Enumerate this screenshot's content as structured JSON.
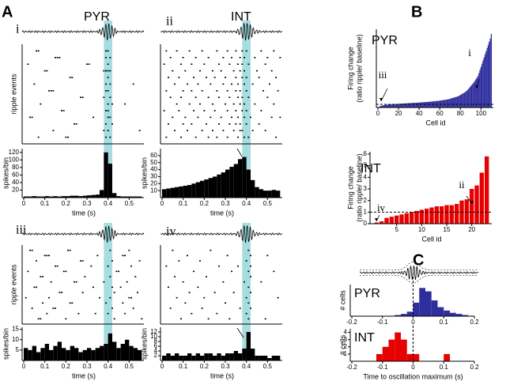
{
  "chart_data": [
    {
      "type": "histogram",
      "panel": "A",
      "label": "i",
      "title": "PYR",
      "xlabel": "time (s)",
      "ylabel": "spikes/bin",
      "raster_ylabel": "ripple events",
      "highlight": [
        0.38,
        0.42
      ],
      "color": "#000000",
      "highlight_color": "#a6dde1",
      "xlim": [
        0,
        0.57
      ],
      "xticks": [
        0,
        0.1,
        0.2,
        0.3,
        0.4,
        0.5
      ],
      "ylim": [
        0,
        130
      ],
      "yticks": [
        20,
        40,
        60,
        80,
        100,
        120
      ],
      "bins": [
        0,
        0.02,
        0.04,
        0.06,
        0.08,
        0.1,
        0.12,
        0.14,
        0.16,
        0.18,
        0.2,
        0.22,
        0.24,
        0.26,
        0.28,
        0.3,
        0.32,
        0.34,
        0.36,
        0.38,
        0.4,
        0.42,
        0.44,
        0.46,
        0.48,
        0.5,
        0.52,
        0.54,
        0.56
      ],
      "values": [
        3,
        3,
        4,
        3,
        3,
        4,
        3,
        4,
        3,
        4,
        4,
        5,
        5,
        4,
        5,
        6,
        7,
        8,
        20,
        120,
        90,
        12,
        4,
        3,
        3,
        3,
        3,
        3
      ],
      "raster": [
        [
          0.06,
          0.07,
          0.39,
          0.4
        ],
        [
          0.15,
          0.16,
          0.17,
          0.39,
          0.41
        ],
        [
          0.02,
          0.3,
          0.31,
          0.4
        ],
        [
          0.1,
          0.11,
          0.38,
          0.39,
          0.4,
          0.41
        ],
        [
          0.22,
          0.23,
          0.4
        ],
        [
          0.05,
          0.39,
          0.41,
          0.52
        ],
        [
          0.12,
          0.13,
          0.14,
          0.39,
          0.4
        ],
        [
          0.27,
          0.28,
          0.38,
          0.41
        ],
        [
          0.08,
          0.4,
          0.42,
          0.48
        ],
        [
          0.18,
          0.19,
          0.39,
          0.4
        ],
        [
          0.03,
          0.04,
          0.33,
          0.4,
          0.41
        ],
        [
          0.24,
          0.25,
          0.39,
          0.42
        ],
        [
          0.14,
          0.38,
          0.4,
          0.55
        ],
        [
          0.07,
          0.2,
          0.21,
          0.39,
          0.41
        ]
      ]
    },
    {
      "type": "histogram",
      "label": "ii",
      "title": "INT",
      "xlabel": "time (s)",
      "ylabel": "spikes/bin",
      "highlight": [
        0.38,
        0.42
      ],
      "color": "#000000",
      "highlight_color": "#a6dde1",
      "xlim": [
        0,
        0.57
      ],
      "xticks": [
        0,
        0.1,
        0.2,
        0.3,
        0.4,
        0.5
      ],
      "ylim": [
        0,
        70
      ],
      "yticks": [
        10,
        20,
        30,
        40,
        50,
        60
      ],
      "bins": [
        0,
        0.02,
        0.04,
        0.06,
        0.08,
        0.1,
        0.12,
        0.14,
        0.16,
        0.18,
        0.2,
        0.22,
        0.24,
        0.26,
        0.28,
        0.3,
        0.32,
        0.34,
        0.36,
        0.38,
        0.4,
        0.42,
        0.44,
        0.46,
        0.48,
        0.5,
        0.52,
        0.54,
        0.56
      ],
      "values": [
        12,
        13,
        14,
        15,
        16,
        17,
        18,
        20,
        22,
        24,
        26,
        28,
        30,
        33,
        36,
        40,
        44,
        48,
        55,
        58,
        40,
        25,
        15,
        12,
        10,
        10,
        11,
        10
      ],
      "raster": [
        [
          0.02,
          0.07,
          0.13,
          0.19,
          0.26,
          0.31,
          0.35,
          0.38,
          0.4,
          0.47,
          0.53
        ],
        [
          0.04,
          0.1,
          0.16,
          0.22,
          0.29,
          0.33,
          0.37,
          0.39,
          0.44,
          0.5,
          0.56
        ],
        [
          0.01,
          0.09,
          0.14,
          0.2,
          0.27,
          0.32,
          0.36,
          0.38,
          0.41,
          0.49
        ],
        [
          0.05,
          0.11,
          0.18,
          0.24,
          0.28,
          0.34,
          0.37,
          0.39,
          0.45,
          0.52
        ],
        [
          0.03,
          0.08,
          0.15,
          0.21,
          0.25,
          0.3,
          0.35,
          0.38,
          0.4,
          0.46,
          0.54
        ],
        [
          0.06,
          0.12,
          0.17,
          0.23,
          0.29,
          0.33,
          0.36,
          0.39,
          0.43,
          0.51
        ],
        [
          0.02,
          0.1,
          0.14,
          0.19,
          0.26,
          0.31,
          0.35,
          0.37,
          0.4,
          0.48,
          0.55
        ],
        [
          0.04,
          0.09,
          0.16,
          0.22,
          0.27,
          0.32,
          0.36,
          0.38,
          0.41,
          0.5
        ],
        [
          0.07,
          0.13,
          0.18,
          0.24,
          0.3,
          0.34,
          0.37,
          0.39,
          0.44,
          0.53
        ],
        [
          0.01,
          0.08,
          0.15,
          0.2,
          0.25,
          0.31,
          0.35,
          0.38,
          0.4,
          0.47
        ],
        [
          0.05,
          0.11,
          0.17,
          0.23,
          0.28,
          0.33,
          0.36,
          0.39,
          0.42,
          0.52,
          0.56
        ],
        [
          0.03,
          0.1,
          0.14,
          0.21,
          0.27,
          0.32,
          0.35,
          0.37,
          0.4,
          0.46
        ],
        [
          0.06,
          0.12,
          0.19,
          0.24,
          0.29,
          0.34,
          0.37,
          0.38,
          0.43,
          0.49
        ],
        [
          0.02,
          0.09,
          0.16,
          0.22,
          0.26,
          0.31,
          0.36,
          0.39,
          0.41,
          0.54
        ]
      ]
    },
    {
      "type": "histogram",
      "label": "iii",
      "xlabel": "time (s)",
      "ylabel": "spikes/bin",
      "raster_ylabel": "ripple events",
      "highlight": [
        0.38,
        0.42
      ],
      "color": "#000000",
      "highlight_color": "#a6dde1",
      "xlim": [
        0,
        0.57
      ],
      "xticks": [
        0,
        0.1,
        0.2,
        0.3,
        0.4,
        0.5
      ],
      "ylim": [
        0,
        16
      ],
      "yticks": [
        5,
        10,
        15
      ],
      "bins": [
        0,
        0.02,
        0.04,
        0.06,
        0.08,
        0.1,
        0.12,
        0.14,
        0.16,
        0.18,
        0.2,
        0.22,
        0.24,
        0.26,
        0.28,
        0.3,
        0.32,
        0.34,
        0.36,
        0.38,
        0.4,
        0.42,
        0.44,
        0.46,
        0.48,
        0.5,
        0.52,
        0.54,
        0.56
      ],
      "values": [
        6,
        5,
        7,
        4,
        6,
        8,
        5,
        7,
        9,
        6,
        5,
        7,
        6,
        4,
        5,
        6,
        5,
        6,
        7,
        8,
        13,
        9,
        6,
        8,
        10,
        7,
        6,
        5
      ],
      "raster": [
        [
          0.03,
          0.04,
          0.21,
          0.22,
          0.41,
          0.5
        ],
        [
          0.1,
          0.11,
          0.12,
          0.35,
          0.47,
          0.48
        ],
        [
          0.06,
          0.27,
          0.28,
          0.42,
          0.55
        ],
        [
          0.15,
          0.16,
          0.32,
          0.4,
          0.51
        ],
        [
          0.02,
          0.19,
          0.2,
          0.44,
          0.45
        ],
        [
          0.08,
          0.09,
          0.29,
          0.41,
          0.53
        ],
        [
          0.13,
          0.24,
          0.25,
          0.38,
          0.49
        ],
        [
          0.05,
          0.06,
          0.33,
          0.42,
          0.46
        ],
        [
          0.17,
          0.18,
          0.28,
          0.43,
          0.54
        ],
        [
          0.01,
          0.12,
          0.36,
          0.41,
          0.5,
          0.51
        ],
        [
          0.09,
          0.22,
          0.23,
          0.39,
          0.47
        ],
        [
          0.04,
          0.14,
          0.15,
          0.42,
          0.52
        ],
        [
          0.11,
          0.26,
          0.34,
          0.4,
          0.48
        ],
        [
          0.07,
          0.08,
          0.2,
          0.43,
          0.56
        ]
      ]
    },
    {
      "type": "histogram",
      "label": "iv",
      "xlabel": "time (s)",
      "ylabel": "spikes/bin",
      "highlight": [
        0.38,
        0.42
      ],
      "color": "#000000",
      "highlight_color": "#a6dde1",
      "xlim": [
        0,
        0.57
      ],
      "xticks": [
        0,
        0.1,
        0.2,
        0.3,
        0.4,
        0.5
      ],
      "ylim": [
        0,
        14
      ],
      "yticks": [
        2,
        4,
        6,
        8,
        10,
        12
      ],
      "bins": [
        0,
        0.02,
        0.04,
        0.06,
        0.08,
        0.1,
        0.12,
        0.14,
        0.16,
        0.18,
        0.2,
        0.22,
        0.24,
        0.26,
        0.28,
        0.3,
        0.32,
        0.34,
        0.36,
        0.38,
        0.4,
        0.42,
        0.44,
        0.46,
        0.48,
        0.5,
        0.52,
        0.54,
        0.56
      ],
      "values": [
        2,
        3,
        2,
        3,
        2,
        2,
        3,
        2,
        3,
        2,
        3,
        3,
        2,
        3,
        2,
        3,
        3,
        4,
        3,
        5,
        12,
        5,
        2,
        2,
        2,
        1,
        2,
        2
      ],
      "raster": [
        [
          0.05,
          0.23,
          0.41
        ],
        [
          0.12,
          0.31,
          0.42,
          0.5
        ],
        [
          0.08,
          0.18,
          0.4
        ],
        [
          0.02,
          0.27,
          0.36,
          0.42
        ],
        [
          0.15,
          0.33,
          0.41,
          0.53
        ],
        [
          0.06,
          0.21,
          0.42
        ],
        [
          0.1,
          0.29,
          0.39,
          0.47
        ],
        [
          0.03,
          0.17,
          0.41
        ],
        [
          0.13,
          0.25,
          0.34,
          0.42
        ],
        [
          0.07,
          0.2,
          0.4,
          0.55
        ],
        [
          0.11,
          0.3,
          0.41
        ],
        [
          0.04,
          0.19,
          0.37,
          0.42
        ],
        [
          0.14,
          0.26,
          0.4
        ],
        [
          0.09,
          0.22,
          0.32,
          0.41,
          0.49
        ]
      ]
    },
    {
      "type": "bar",
      "panel": "B",
      "title": "PYR",
      "xlabel": "Cell id",
      "ylabel": [
        "Firing change",
        "(ratio  ripple/ baseline)"
      ],
      "annotations": [
        "i",
        "iii"
      ],
      "color": "#2e2e9e",
      "hline": 1,
      "xlim": [
        0,
        112
      ],
      "xticks": [
        0,
        20,
        40,
        60,
        80,
        100
      ],
      "ylim": [
        0,
        25
      ],
      "x": [
        1,
        2,
        3,
        4,
        5,
        6,
        7,
        8,
        9,
        10,
        11,
        12,
        13,
        14,
        15,
        16,
        17,
        18,
        19,
        20,
        21,
        22,
        23,
        24,
        25,
        26,
        27,
        28,
        29,
        30,
        31,
        32,
        33,
        34,
        35,
        36,
        37,
        38,
        39,
        40,
        41,
        42,
        43,
        44,
        45,
        46,
        47,
        48,
        49,
        50,
        51,
        52,
        53,
        54,
        55,
        56,
        57,
        58,
        59,
        60,
        61,
        62,
        63,
        64,
        65,
        66,
        67,
        68,
        69,
        70,
        71,
        72,
        73,
        74,
        75,
        76,
        77,
        78,
        79,
        80,
        81,
        82,
        83,
        84,
        85,
        86,
        87,
        88,
        89,
        90,
        91,
        92,
        93,
        94,
        95,
        96,
        97,
        98,
        99,
        100,
        101,
        102,
        103,
        104,
        105,
        106,
        107,
        108,
        109,
        110
      ],
      "values": [
        0.2,
        0.4,
        0.5,
        0.6,
        0.7,
        0.75,
        0.8,
        0.85,
        0.9,
        0.95,
        1,
        1,
        1.05,
        1.05,
        1.1,
        1.1,
        1.1,
        1.15,
        1.15,
        1.2,
        1.2,
        1.2,
        1.25,
        1.25,
        1.3,
        1.3,
        1.3,
        1.35,
        1.35,
        1.4,
        1.4,
        1.4,
        1.45,
        1.45,
        1.5,
        1.5,
        1.5,
        1.55,
        1.55,
        1.6,
        1.6,
        1.65,
        1.65,
        1.7,
        1.7,
        1.75,
        1.75,
        1.8,
        1.8,
        1.85,
        1.9,
        1.9,
        1.95,
        2,
        2,
        2.05,
        2.1,
        2.1,
        2.15,
        2.2,
        2.25,
        2.3,
        2.35,
        2.4,
        2.45,
        2.5,
        2.55,
        2.6,
        2.7,
        2.8,
        2.9,
        3,
        3.1,
        3.2,
        3.3,
        3.4,
        3.5,
        3.6,
        3.8,
        4,
        4.2,
        4.4,
        4.6,
        4.8,
        5,
        5.3,
        5.6,
        6,
        6.4,
        6.8,
        7.2,
        7.6,
        8,
        8.5,
        9,
        9.5,
        10,
        11,
        12,
        13,
        14,
        15,
        16,
        17,
        18,
        19,
        20,
        21,
        22,
        23.5
      ]
    },
    {
      "type": "bar",
      "title": "INT",
      "xlabel": "Cell id",
      "ylabel": [
        "Firing change",
        "(ratio  ripple/ baseline)"
      ],
      "annotations": [
        "ii",
        "iv"
      ],
      "color": "#e60000",
      "hline": 1,
      "xlim": [
        0,
        24
      ],
      "xticks": [
        5,
        10,
        15,
        20
      ],
      "ylim": [
        0,
        6.2
      ],
      "yticks": [
        0,
        1,
        2,
        3,
        4,
        5,
        6
      ],
      "x": [
        1,
        2,
        3,
        4,
        5,
        6,
        7,
        8,
        9,
        10,
        11,
        12,
        13,
        14,
        15,
        16,
        17,
        18,
        19,
        20,
        21,
        22,
        23
      ],
      "values": [
        0.1,
        0.2,
        0.5,
        0.6,
        0.7,
        0.8,
        0.9,
        1,
        1.1,
        1.2,
        1.3,
        1.4,
        1.5,
        1.5,
        1.6,
        1.6,
        1.7,
        2,
        2.1,
        3,
        3.3,
        4.4,
        5.8
      ]
    },
    {
      "type": "histogram",
      "panel": "C",
      "title": "PYR",
      "ylabel": "# cells",
      "color": "#2e2e9e",
      "vline": 0,
      "xlim": [
        -0.2,
        0.2
      ],
      "xticks": [
        -0.2,
        -0.1,
        0,
        0.1,
        0.2
      ],
      "ylim": [
        0,
        28
      ],
      "bins": [
        -0.2,
        -0.18,
        -0.16,
        -0.14,
        -0.12,
        -0.1,
        -0.08,
        -0.06,
        -0.04,
        -0.02,
        0,
        0.02,
        0.04,
        0.06,
        0.08,
        0.1,
        0.12,
        0.14,
        0.16,
        0.18,
        0.2
      ],
      "values": [
        0,
        0,
        0,
        0,
        0,
        0,
        0,
        1,
        2,
        4,
        12,
        25,
        22,
        14,
        8,
        5,
        3,
        2,
        1,
        0
      ]
    },
    {
      "type": "histogram",
      "title": "INT",
      "ylabel": "# cells",
      "xlabel": "Time to oscillation maximum  (s)",
      "color": "#e60000",
      "vline": 0,
      "xlim": [
        -0.2,
        0.2
      ],
      "xticks": [
        -0.2,
        -0.1,
        0,
        0.1,
        0.2
      ],
      "ylim": [
        0,
        4.5
      ],
      "yticks": [
        1,
        2,
        3,
        4
      ],
      "bins": [
        -0.2,
        -0.18,
        -0.16,
        -0.14,
        -0.12,
        -0.1,
        -0.08,
        -0.06,
        -0.04,
        -0.02,
        0,
        0.02,
        0.04,
        0.06,
        0.08,
        0.1,
        0.12,
        0.14,
        0.16,
        0.18,
        0.2
      ],
      "values": [
        0,
        0,
        0,
        0,
        1,
        2,
        3,
        4,
        3,
        1,
        1,
        0,
        0,
        0,
        0,
        1,
        0,
        0,
        0,
        0
      ]
    }
  ]
}
